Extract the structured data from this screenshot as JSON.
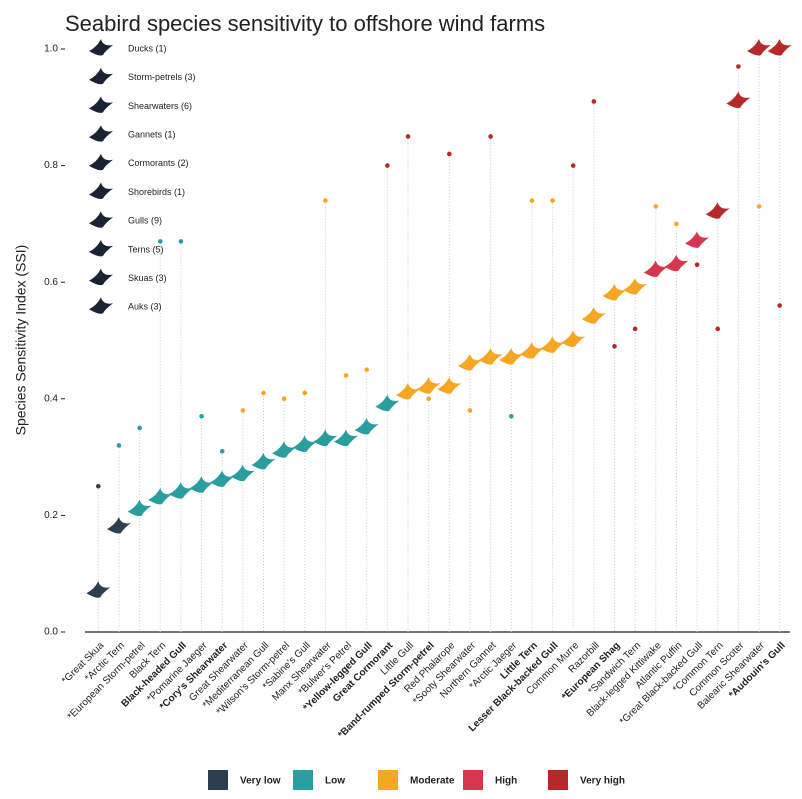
{
  "chart_data": {
    "type": "dotplot",
    "title": "Seabird species sensitivity to offshore wind farms",
    "y_label": "Species Sensitivity Index (SSI)",
    "categories": [
      "*Great Skua",
      "*Arctic Tern",
      "*European Storm-petrel",
      "Black Tern",
      "Black-headed Gull",
      "*Pomarine Jaeger",
      "*Cory's Shearwater",
      "Great Shearwater",
      "*Mediterranean Gull",
      "*Wilson's Storm-petrel",
      "*Sabine's Gull",
      "Manx Shearwater",
      "*Bulwer's Petrel",
      "*Yellow-legged Gull",
      "Great Cormorant",
      "Little Gull",
      "*Band-rumped Storm-petrel",
      "Red Phalarope",
      "*Sooty Shearwater",
      "Northern Gannet",
      "*Arctic Jaeger",
      "Little Tern",
      "Lesser Black-backed Gull",
      "Common Murre",
      "Razorbill",
      "*European Shag",
      "*Sandwich Tern",
      "Black-legged Kittiwake",
      "Atlantic Puffin",
      "*Great Black-backed Gull",
      "*Common Tern",
      "Common Scoter",
      "Balearic Shearwater",
      "*Audouin's Gull"
    ],
    "bold": [
      false,
      false,
      false,
      false,
      true,
      false,
      true,
      false,
      false,
      false,
      false,
      false,
      false,
      true,
      true,
      false,
      true,
      false,
      false,
      false,
      false,
      true,
      true,
      false,
      false,
      true,
      false,
      false,
      false,
      false,
      false,
      false,
      false,
      true
    ],
    "classes": [
      {
        "name": "Very low",
        "color": "#2d3e50"
      },
      {
        "name": "Low",
        "color": "#2a9d9f"
      },
      {
        "name": "Moderate",
        "color": "#f5a623"
      },
      {
        "name": "High",
        "color": "#d6364e"
      },
      {
        "name": "Very high",
        "color": "#b5292a"
      }
    ],
    "values": [
      0.07,
      0.18,
      0.21,
      0.23,
      0.24,
      0.25,
      0.26,
      0.27,
      0.29,
      0.31,
      0.32,
      0.33,
      0.33,
      0.35,
      0.39,
      0.41,
      0.42,
      0.42,
      0.46,
      0.47,
      0.47,
      0.48,
      0.49,
      0.5,
      0.54,
      0.58,
      0.59,
      0.62,
      0.63,
      0.67,
      0.72,
      0.91,
      1.0,
      1.0
    ],
    "value_class": [
      0,
      0,
      1,
      1,
      1,
      1,
      1,
      1,
      1,
      1,
      1,
      1,
      1,
      1,
      1,
      2,
      2,
      2,
      2,
      2,
      2,
      2,
      2,
      2,
      2,
      2,
      2,
      3,
      3,
      3,
      4,
      4,
      4,
      4
    ],
    "upper": [
      0.25,
      0.32,
      0.35,
      0.67,
      0.67,
      0.37,
      0.31,
      0.38,
      0.41,
      0.4,
      0.41,
      0.74,
      0.44,
      0.45,
      0.8,
      0.85,
      0.4,
      0.82,
      0.38,
      0.85,
      0.37,
      0.74,
      0.74,
      0.8,
      0.91,
      0.49,
      0.52,
      0.73,
      0.7,
      0.63,
      0.52,
      0.97,
      0.73,
      0.56
    ],
    "upper_class": [
      0,
      1,
      1,
      1,
      1,
      1,
      1,
      2,
      2,
      2,
      2,
      2,
      2,
      2,
      4,
      4,
      2,
      4,
      2,
      4,
      1,
      2,
      2,
      4,
      4,
      4,
      4,
      2,
      2,
      4,
      4,
      4,
      2,
      4
    ],
    "groups": [
      "Ducks (1)",
      "Storm-petrels (3)",
      "Shearwaters (6)",
      "Gannets (1)",
      "Cormorants (2)",
      "Shorebirds (1)",
      "Gulls (9)",
      "Terns (5)",
      "Skuas (3)",
      "Auks (3)"
    ],
    "ylim": [
      0,
      1.0
    ],
    "yticks": [
      {
        "value": 0,
        "label": "0.0"
      },
      {
        "value": 0.2,
        "label": "0.2"
      },
      {
        "value": 0.4,
        "label": "0.4"
      },
      {
        "value": 0.6,
        "label": "0.6"
      },
      {
        "value": 0.8,
        "label": "0.8"
      },
      {
        "value": 1,
        "label": "1.0"
      }
    ]
  }
}
